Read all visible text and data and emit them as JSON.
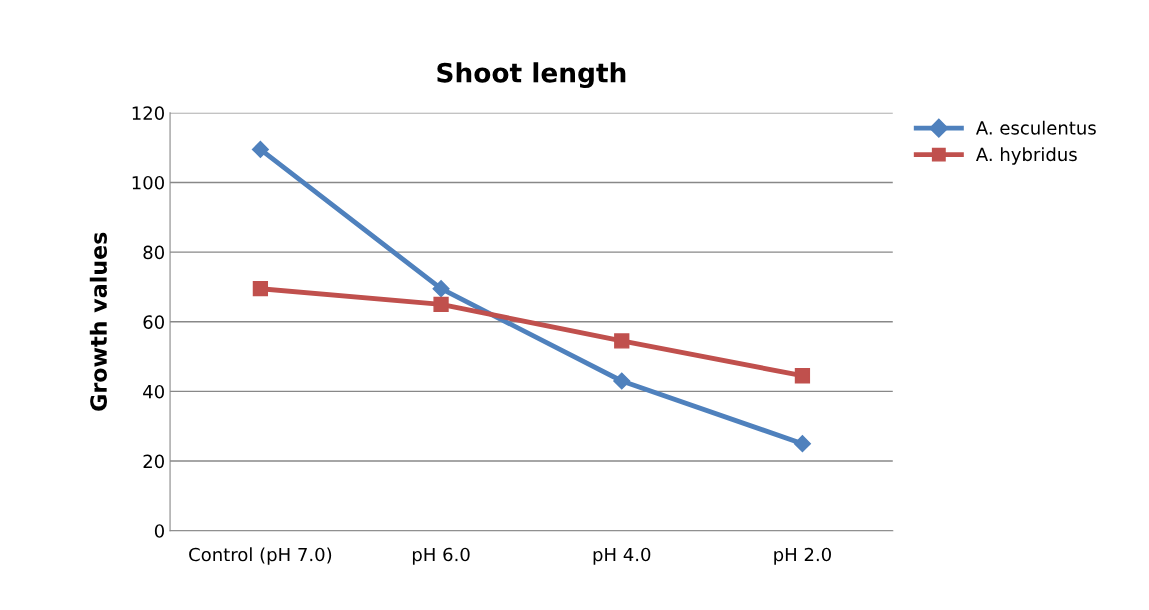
{
  "chart_data": {
    "type": "line",
    "title": "Shoot length",
    "ylabel": "Growth values",
    "categories": [
      "Control (pH 7.0)",
      "pH 6.0",
      "pH 4.0",
      "pH 2.0"
    ],
    "series": [
      {
        "name": "A. esculentus",
        "color": "#4f81bd",
        "marker": "diamond",
        "values": [
          109.5,
          69.5,
          43,
          25
        ]
      },
      {
        "name": "A. hybridus",
        "color": "#c0504d",
        "marker": "square",
        "values": [
          69.5,
          65,
          54.5,
          44.5
        ]
      }
    ],
    "ylim": [
      0,
      120
    ],
    "yticks": [
      0,
      20,
      40,
      60,
      80,
      100,
      120
    ],
    "grid": "y",
    "legend": "top right",
    "line_style": "solid"
  }
}
